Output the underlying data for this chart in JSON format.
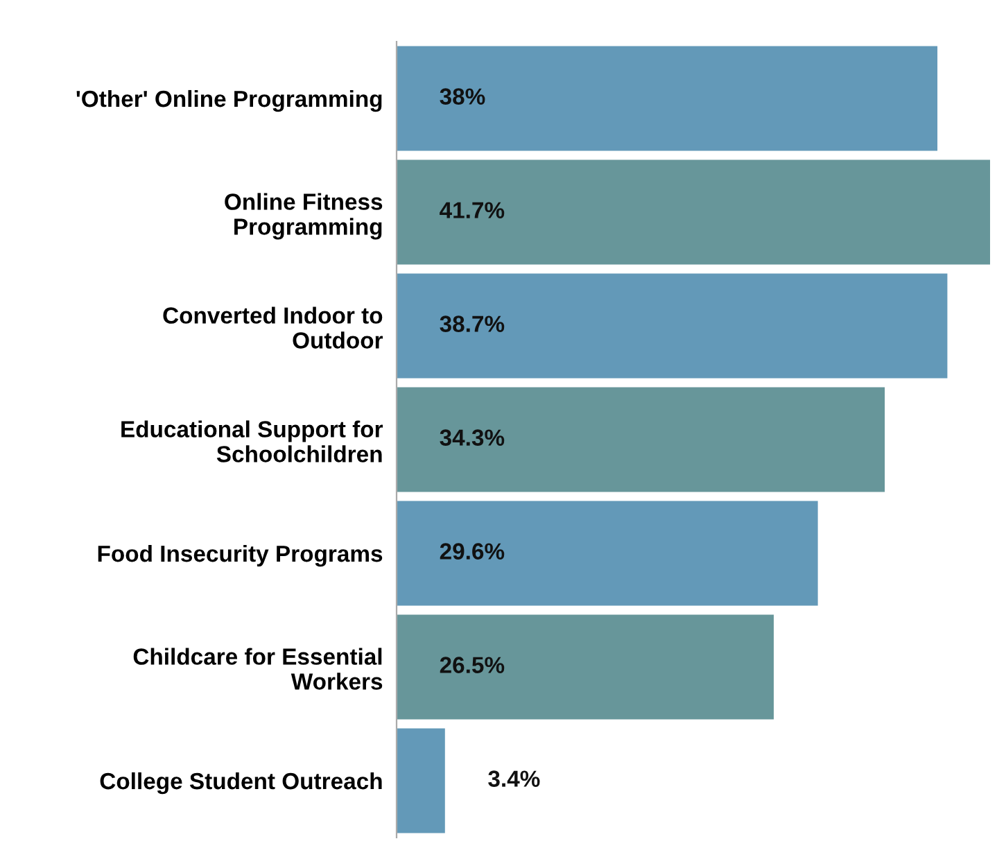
{
  "chart_data": {
    "type": "bar",
    "orientation": "horizontal",
    "categories": [
      "'Other' Online Programming",
      "Online Fitness\nProgramming",
      "Converted Indoor to\nOutdoor",
      "Educational Support for\nSchoolchildren",
      "Food Insecurity Programs",
      "Childcare for Essential\nWorkers",
      "College Student Outreach"
    ],
    "values": [
      38,
      41.7,
      38.7,
      34.3,
      29.6,
      26.5,
      3.4
    ],
    "value_labels": [
      "38%",
      "41.7%",
      "38.7%",
      "34.3%",
      "29.6%",
      "26.5%",
      "3.4%"
    ],
    "colors": [
      "#6399b8",
      "#67969a",
      "#6399b8",
      "#67969a",
      "#6399b8",
      "#67969a",
      "#6399b8"
    ],
    "xlim": [
      0,
      41.7
    ],
    "tick_labels": "y",
    "grid": false,
    "legend": false
  }
}
